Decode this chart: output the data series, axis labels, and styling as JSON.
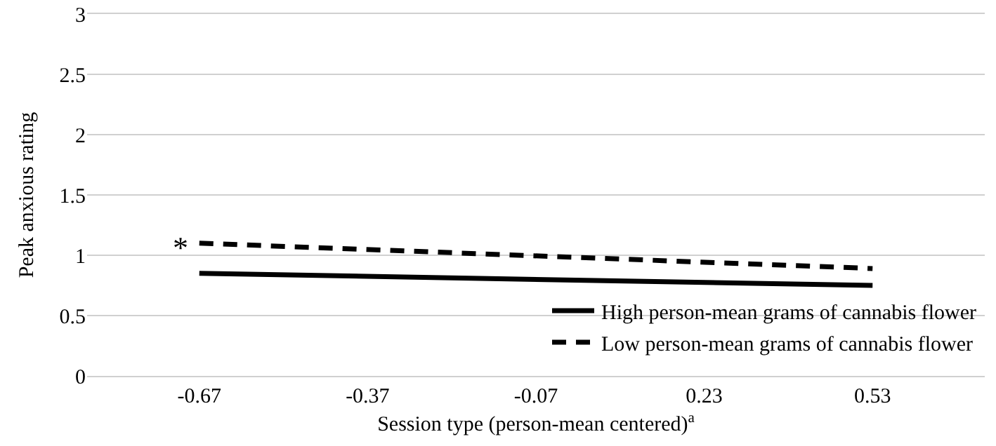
{
  "chart_data": {
    "type": "line",
    "xlabel": "Session type (person-mean centered)$^{a}$",
    "ylabel": "Peak anxious rating",
    "xlim": [
      -0.87,
      0.73
    ],
    "xticks": [
      -0.67,
      -0.37,
      -0.07,
      0.23,
      0.53
    ],
    "ylim": [
      0,
      3
    ],
    "yticks": [
      0,
      0.5,
      1,
      1.5,
      2,
      2.5,
      3
    ],
    "x": [
      -0.67,
      0.53
    ],
    "series": [
      {
        "name": "High person-mean grams of cannabis flower",
        "color": "#000000",
        "values": [
          0.85,
          0.75
        ],
        "line_style": "solid"
      },
      {
        "name": "Low person-mean grams of cannabis flower",
        "color": "#000000",
        "values": [
          1.1,
          0.89
        ],
        "line_style": "dashed"
      }
    ],
    "annotations": [
      {
        "text": "*",
        "x": -0.67,
        "y": 1.1
      }
    ],
    "grid": "y",
    "legend": "bottom right",
    "marker": "none"
  }
}
